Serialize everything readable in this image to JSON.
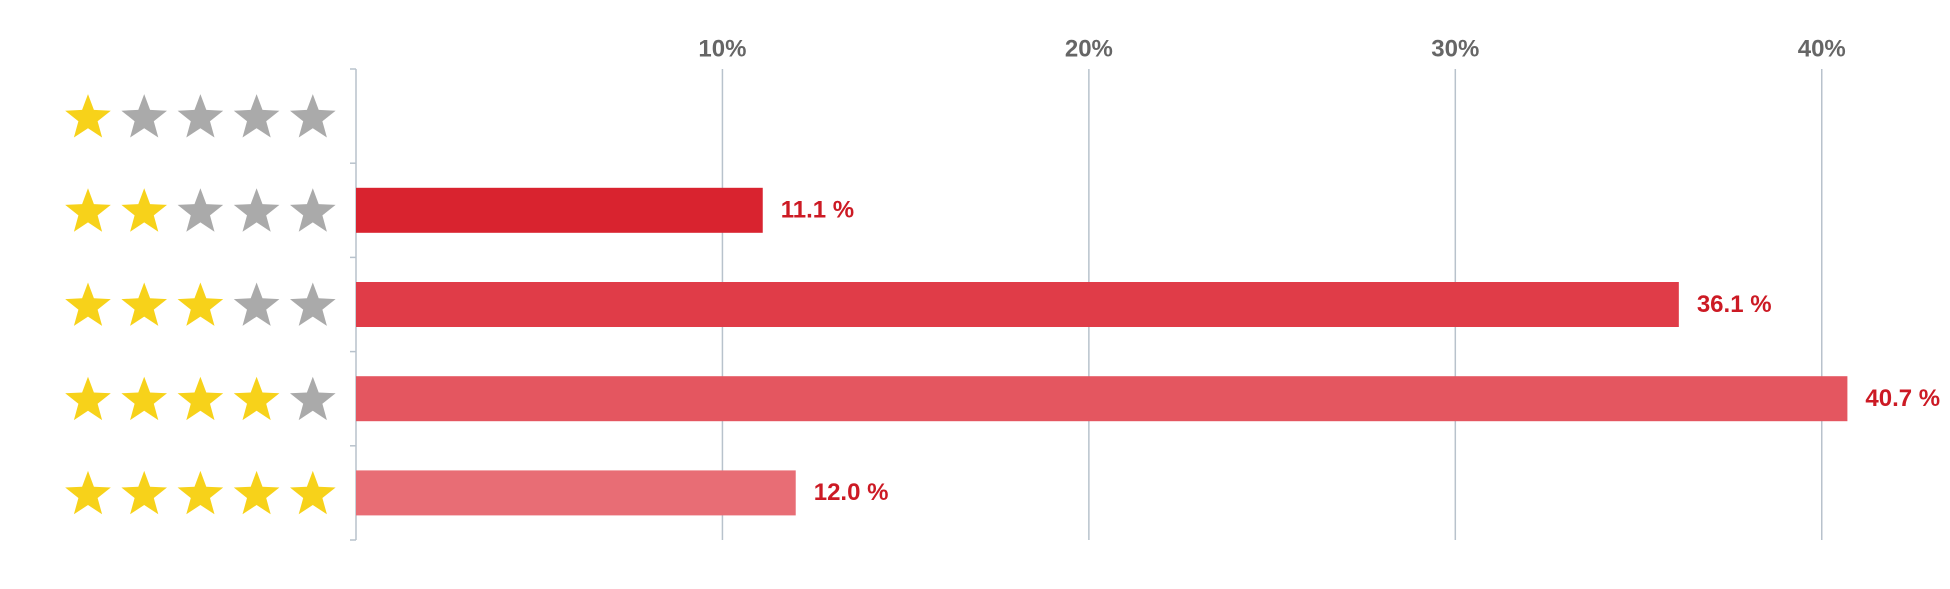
{
  "chart_data": {
    "type": "bar",
    "orientation": "horizontal",
    "categories": [
      null,
      null,
      null,
      null,
      null
    ],
    "category_stars": [
      1,
      2,
      3,
      4,
      5
    ],
    "star_scale": 5,
    "star_color": "#f7d21a",
    "star_empty_color": "#aaaaaa",
    "values": [
      0,
      11.1,
      36.1,
      40.7,
      12
    ],
    "value_labels": [
      null,
      "11.1 %",
      "36.1 %",
      "40.7 %",
      "12.0 %"
    ],
    "colors": [
      "#d9232f",
      "#d9232f",
      "#e03c48",
      "#e45660",
      "#e86d75"
    ],
    "label_color": "#cc1a24",
    "xlim": [
      0,
      43.5
    ],
    "xticks": [
      {
        "value": 10,
        "label": "10%"
      },
      {
        "value": 20,
        "label": "20%"
      },
      {
        "value": 30,
        "label": "30%"
      },
      {
        "value": 40,
        "label": "40%"
      }
    ],
    "grid": true
  }
}
